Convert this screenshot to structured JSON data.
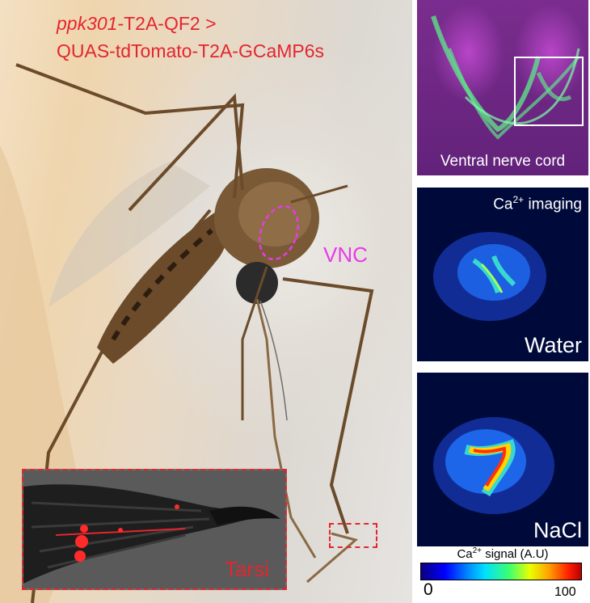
{
  "figure": {
    "genotype_line1_gene": "ppk301",
    "genotype_line1_rest": "-T2A-QF2 >",
    "genotype_line2": "QUAS-tdTomato-T2A-GCaMP6s",
    "vnc_label": "VNC",
    "tarsi_label": "Tarsi",
    "vnc_panel_caption": "Ventral nerve cord",
    "ca_imaging_label_prefix": "Ca",
    "ca_imaging_label_sup": "2+",
    "ca_imaging_label_suffix": " imaging",
    "water_label": "Water",
    "nacl_label": "NaCl",
    "colorbar_title_prefix": "Ca",
    "colorbar_title_sup": "2+",
    "colorbar_title_suffix": " signal (A.U)",
    "colorbar_min": "0",
    "colorbar_max": "100"
  },
  "colors": {
    "annotation_red": "#e3262e",
    "vnc_magenta": "#e83be8",
    "neuron_green": "#5fe08a"
  }
}
